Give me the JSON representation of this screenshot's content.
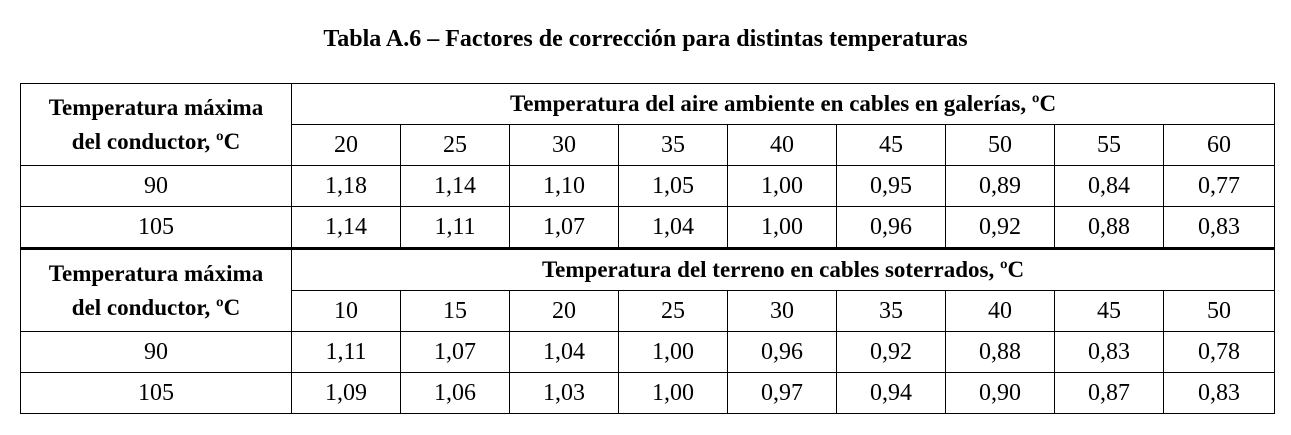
{
  "title": "Tabla A.6 – Factores de corrección para distintas temperaturas",
  "sections": [
    {
      "row_header_line1": "Temperatura máxima",
      "row_header_line2": "del conductor, ºC",
      "group_header": "Temperatura del aire ambiente en cables en galerías, ºC",
      "temperatures": [
        "20",
        "25",
        "30",
        "35",
        "40",
        "45",
        "50",
        "55",
        "60"
      ],
      "rows": [
        {
          "conductor_temp": "90",
          "values": [
            "1,18",
            "1,14",
            "1,10",
            "1,05",
            "1,00",
            "0,95",
            "0,89",
            "0,84",
            "0,77"
          ]
        },
        {
          "conductor_temp": "105",
          "values": [
            "1,14",
            "1,11",
            "1,07",
            "1,04",
            "1,00",
            "0,96",
            "0,92",
            "0,88",
            "0,83"
          ]
        }
      ]
    },
    {
      "row_header_line1": "Temperatura máxima",
      "row_header_line2": "del conductor, ºC",
      "group_header": "Temperatura del terreno en cables soterrados, ºC",
      "temperatures": [
        "10",
        "15",
        "20",
        "25",
        "30",
        "35",
        "40",
        "45",
        "50"
      ],
      "rows": [
        {
          "conductor_temp": "90",
          "values": [
            "1,11",
            "1,07",
            "1,04",
            "1,00",
            "0,96",
            "0,92",
            "0,88",
            "0,83",
            "0,78"
          ]
        },
        {
          "conductor_temp": "105",
          "values": [
            "1,09",
            "1,06",
            "1,03",
            "1,00",
            "0,97",
            "0,94",
            "0,90",
            "0,87",
            "0,83"
          ]
        }
      ]
    }
  ]
}
